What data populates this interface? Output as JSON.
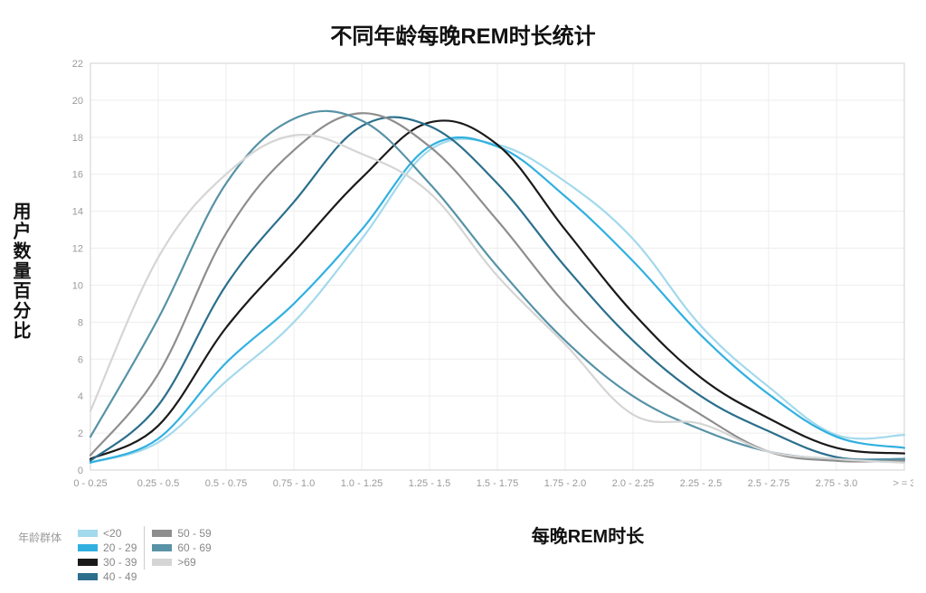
{
  "title": "不同年龄每晚REM时长统计",
  "xlabel": "每晚REM时长",
  "ylabel": "用户数量百分比",
  "legend_title": "年龄群体",
  "chart": {
    "type": "line",
    "background_color": "#ffffff",
    "grid_color": "#ededed",
    "axis_color": "#d0d0d0",
    "tick_fontsize": 11,
    "tick_color": "#9a9a9a",
    "title_fontsize": 24,
    "label_fontsize": 20,
    "line_width": 2.2,
    "categories": [
      "0 - 0.25",
      "0.25 - 0.5",
      "0.5 - 0.75",
      "0.75 - 1.0",
      "1.0 - 1.25",
      "1.25 - 1.5",
      "1.5 - 1.75",
      "1.75 - 2.0",
      "2.0 - 2.25",
      "2.25 - 2.5",
      "2.5 - 2.75",
      "2.75 - 3.0",
      "> = 3"
    ],
    "ylim": [
      0,
      22
    ],
    "ytick_step": 2,
    "series": [
      {
        "name": "<20",
        "color": "#a3d9ec",
        "data": [
          0.4,
          1.5,
          4.8,
          8.0,
          12.5,
          17.3,
          17.6,
          15.6,
          12.5,
          7.8,
          4.5,
          1.9,
          1.9
        ]
      },
      {
        "name": "20 - 29",
        "color": "#31b0e0",
        "data": [
          0.4,
          1.7,
          5.8,
          9.0,
          13.0,
          17.5,
          17.5,
          14.8,
          11.3,
          7.3,
          4.1,
          1.8,
          1.2
        ]
      },
      {
        "name": "30 - 39",
        "color": "#1a1a1a",
        "data": [
          0.6,
          2.4,
          7.7,
          11.8,
          15.8,
          18.8,
          17.6,
          13.0,
          8.5,
          5.0,
          2.8,
          1.2,
          0.9
        ]
      },
      {
        "name": "40 - 49",
        "color": "#2b6f8c",
        "data": [
          0.5,
          3.5,
          10.0,
          14.5,
          18.6,
          18.6,
          15.5,
          11.0,
          7.0,
          4.0,
          2.1,
          0.7,
          0.6
        ]
      },
      {
        "name": "50 - 59",
        "color": "#8e8e8e",
        "data": [
          0.8,
          5.2,
          12.8,
          17.3,
          19.3,
          17.5,
          13.5,
          9.0,
          5.5,
          3.0,
          1.0,
          0.5,
          0.5
        ]
      },
      {
        "name": "60 - 69",
        "color": "#5792a6",
        "data": [
          1.8,
          8.2,
          15.5,
          19.0,
          18.9,
          15.5,
          11.0,
          7.0,
          4.0,
          2.2,
          1.0,
          0.6,
          0.6
        ]
      },
      {
        "name": ">69",
        "color": "#d5d5d5",
        "data": [
          3.2,
          11.5,
          16.0,
          18.1,
          17.1,
          15.0,
          10.5,
          6.8,
          3.0,
          2.5,
          1.0,
          0.6,
          0.4
        ]
      }
    ]
  },
  "legend": {
    "columns": [
      [
        {
          "label": "<20",
          "color": "#a3d9ec"
        },
        {
          "label": "20 - 29",
          "color": "#31b0e0"
        },
        {
          "label": "30 - 39",
          "color": "#1a1a1a"
        },
        {
          "label": "40 - 49",
          "color": "#2b6f8c"
        }
      ],
      [
        {
          "label": "50 - 59",
          "color": "#8e8e8e"
        },
        {
          "label": "60 - 69",
          "color": "#5792a6"
        },
        {
          "label": ">69",
          "color": "#d5d5d5"
        }
      ]
    ]
  }
}
